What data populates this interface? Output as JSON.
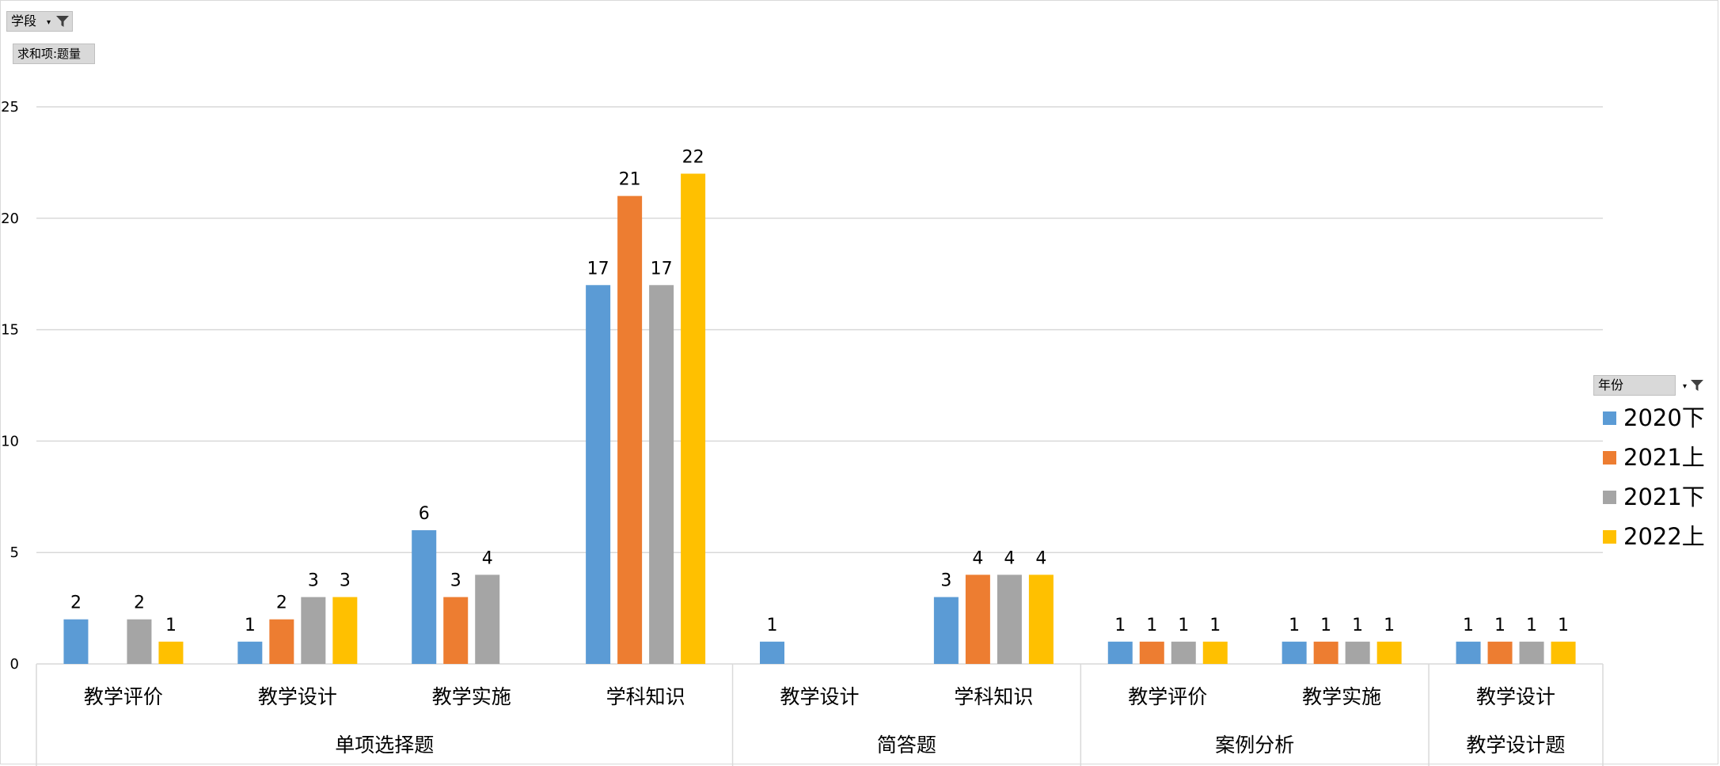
{
  "filters": {
    "stage_label": "学段",
    "sum_label": "求和项:题量",
    "year_label": "年份"
  },
  "chart_data": {
    "type": "bar",
    "ylim": [
      0,
      25
    ],
    "yticks": [
      0,
      5,
      10,
      15,
      20,
      25
    ],
    "grid": true,
    "legend_position": "right",
    "groups": [
      {
        "name": "单项选择题",
        "categories": [
          "教学评价",
          "教学设计",
          "教学实施",
          "学科知识"
        ]
      },
      {
        "name": "简答题",
        "categories": [
          "教学设计",
          "学科知识"
        ]
      },
      {
        "name": "案例分析",
        "categories": [
          "教学评价",
          "教学实施"
        ]
      },
      {
        "name": "教学设计题",
        "categories": [
          "教学设计"
        ]
      }
    ],
    "series": [
      {
        "name": "2020下",
        "color": "#5B9BD5",
        "values": [
          2,
          1,
          6,
          17,
          1,
          3,
          1,
          1,
          1
        ]
      },
      {
        "name": "2021上",
        "color": "#ED7D31",
        "values": [
          null,
          2,
          3,
          21,
          null,
          4,
          1,
          1,
          1
        ]
      },
      {
        "name": "2021下",
        "color": "#A5A5A5",
        "values": [
          2,
          3,
          4,
          17,
          null,
          4,
          1,
          1,
          1
        ]
      },
      {
        "name": "2022上",
        "color": "#FFC000",
        "values": [
          1,
          3,
          null,
          22,
          null,
          4,
          1,
          1,
          1
        ]
      }
    ]
  }
}
